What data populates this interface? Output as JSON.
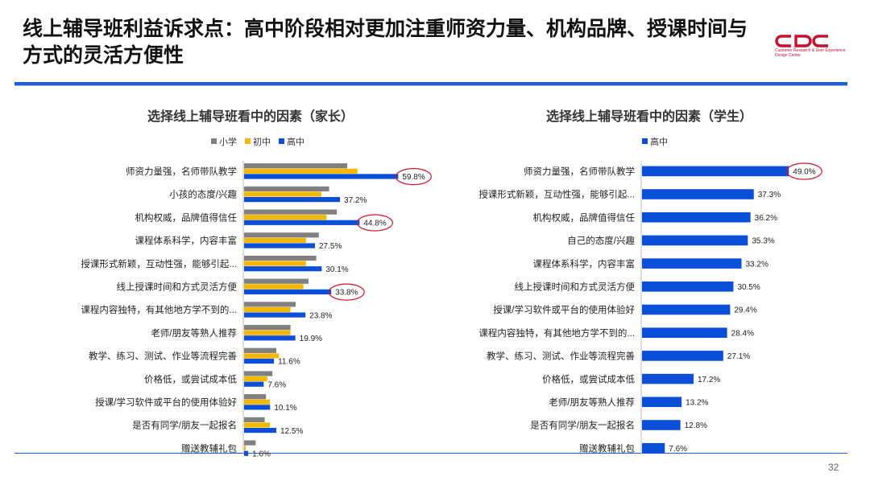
{
  "page": {
    "title": "线上辅导班利益诉求点：高中阶段相对更加注重师资力量、机构品牌、授课时间与方式的灵活方便性",
    "logo_text": "CDC",
    "logo_subtext": "Customer Research & User Experience Design Center",
    "page_number": "32"
  },
  "colors": {
    "primary": "#0b4fd9",
    "junior": "#f5b800",
    "primary_school": "#808080",
    "highlight": "#d1142b",
    "rule": "#1f5fd1"
  },
  "chart_data": [
    {
      "type": "bar",
      "orientation": "horizontal",
      "title": "选择线上辅导班看中的因素（家长）",
      "legend_position": "top-left",
      "categories": [
        "师资力量强，名师带队教学",
        "小孩的态度/兴趣",
        "机构权威，品牌值得信任",
        "课程体系科学，内容丰富",
        "授课形式新颖，互动性强，能够引起...",
        "线上授课时间和方式灵活方便",
        "课程内容独特，有其他地方学不到的...",
        "老师/朋友等熟人推荐",
        "教学、练习、测试、作业等流程完善",
        "价格低，或尝试成本低",
        "授课/学习软件或平台的使用体验好",
        "是否有同学/朋友一起报名",
        "赠送教辅礼包"
      ],
      "series": [
        {
          "name": "小学",
          "color": "#808080",
          "values": [
            40.0,
            33.0,
            36.0,
            29.0,
            28.0,
            25.0,
            20.0,
            18.0,
            12.5,
            11.0,
            8.5,
            8.0,
            4.5
          ]
        },
        {
          "name": "初中",
          "color": "#f5b800",
          "values": [
            44.0,
            30.0,
            32.0,
            24.0,
            24.0,
            23.0,
            18.0,
            18.0,
            13.5,
            9.0,
            10.0,
            10.0,
            0.6
          ]
        },
        {
          "name": "高中",
          "color": "#0b4fd9",
          "values": [
            59.8,
            37.2,
            44.8,
            27.5,
            30.1,
            33.8,
            23.8,
            19.9,
            11.6,
            7.6,
            10.1,
            12.5,
            1.6
          ]
        }
      ],
      "value_labels": [
        "59.8%",
        "37.2%",
        "44.8%",
        "27.5%",
        "30.1%",
        "33.8%",
        "23.8%",
        "19.9%",
        "11.6%",
        "7.6%",
        "10.1%",
        "12.5%",
        "1.6%"
      ],
      "highlighted_labels": [
        "59.8%",
        "44.8%",
        "33.8%"
      ]
    },
    {
      "type": "bar",
      "orientation": "horizontal",
      "title": "选择线上辅导班看中的因素（学生）",
      "legend_position": "top-left",
      "categories": [
        "师资力量强，名师带队教学",
        "授课形式新颖，互动性强，能够引起...",
        "机构权威，品牌值得信任",
        "自己的态度/兴趣",
        "课程体系科学，内容丰富",
        "线上授课时间和方式灵活方便",
        "授课/学习软件或平台的使用体验好",
        "课程内容独特，有其他地方学不到的...",
        "教学、练习、测试、作业等流程完善",
        "价格低，或尝试成本低",
        "老师/朋友等熟人推荐",
        "是否有同学/朋友一起报名",
        "赠送教辅礼包"
      ],
      "series": [
        {
          "name": "高中",
          "color": "#0b4fd9",
          "values": [
            49.0,
            37.3,
            36.2,
            35.3,
            33.2,
            30.5,
            29.4,
            28.4,
            27.1,
            17.2,
            13.2,
            12.8,
            7.6
          ]
        }
      ],
      "value_labels": [
        "49.0%",
        "37.3%",
        "36.2%",
        "35.3%",
        "33.2%",
        "30.5%",
        "29.4%",
        "28.4%",
        "27.1%",
        "17.2%",
        "13.2%",
        "12.8%",
        "7.6%"
      ],
      "highlighted_labels": [
        "49.0%"
      ]
    }
  ]
}
